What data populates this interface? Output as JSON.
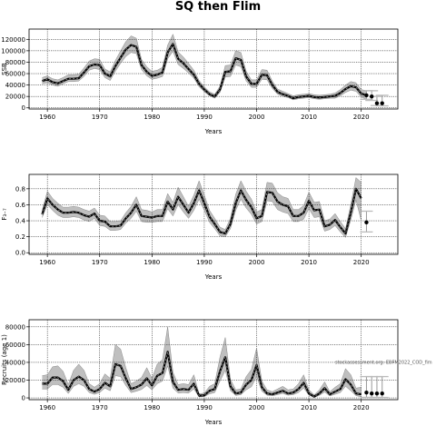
{
  "title": "SQ then Flim",
  "watermark": "stockassessment.org: EBFM2022_COD_fim",
  "chart_data": [
    {
      "type": "line",
      "xlabel": "Years",
      "ylabel": "SSB",
      "xlim": [
        1956.5,
        2027
      ],
      "ylim": [
        -2000,
        138000
      ],
      "xticks": [
        1960,
        1970,
        1980,
        1990,
        2000,
        2010,
        2020
      ],
      "yticks": [
        0,
        20000,
        40000,
        60000,
        80000,
        100000,
        120000
      ],
      "grid": true,
      "series": [
        {
          "x": [
            1959,
            1960,
            1961,
            1962,
            1963,
            1964,
            1965,
            1966,
            1967,
            1968,
            1969,
            1970,
            1971,
            1972,
            1973,
            1974,
            1975,
            1976,
            1977,
            1978,
            1979,
            1980,
            1981,
            1982,
            1983,
            1984,
            1985,
            1986,
            1987,
            1988,
            1989,
            1990,
            1991,
            1992,
            1993,
            1994,
            1995,
            1996,
            1997,
            1998,
            1999,
            2000,
            2001,
            2002,
            2003,
            2004,
            2005,
            2006,
            2007,
            2008,
            2009,
            2010,
            2011,
            2012,
            2013,
            2014,
            2015,
            2016,
            2017,
            2018,
            2019,
            2020,
            2021
          ],
          "y": [
            47000,
            50000,
            45000,
            43000,
            47000,
            51000,
            51000,
            52000,
            62000,
            73000,
            76000,
            75000,
            60000,
            55000,
            73000,
            88000,
            102000,
            110000,
            107000,
            75000,
            63000,
            56000,
            58000,
            62000,
            97000,
            112000,
            86000,
            78000,
            68000,
            58000,
            42000,
            32000,
            24000,
            20000,
            32000,
            63000,
            64000,
            87000,
            84000,
            55000,
            42000,
            42000,
            58000,
            57000,
            40000,
            28000,
            24000,
            21000,
            17000,
            19000,
            20000,
            21000,
            19000,
            18000,
            19000,
            20000,
            21000,
            26000,
            33000,
            38000,
            36000,
            25000,
            22000
          ],
          "lower": [
            42000,
            44000,
            40000,
            38000,
            42000,
            46000,
            46000,
            47000,
            55000,
            66000,
            69000,
            67000,
            53000,
            48000,
            64000,
            78000,
            90000,
            97000,
            95000,
            67000,
            56000,
            50000,
            52000,
            55000,
            86000,
            99000,
            76000,
            69000,
            61000,
            52000,
            37000,
            28000,
            21000,
            17000,
            27000,
            54000,
            55000,
            75000,
            72000,
            47000,
            36000,
            36000,
            50000,
            49000,
            34000,
            24000,
            20000,
            18000,
            14000,
            16000,
            17000,
            18000,
            16000,
            15000,
            16000,
            17000,
            17000,
            21000,
            27000,
            31000,
            29000,
            19000,
            15000
          ],
          "upper": [
            53000,
            56000,
            51000,
            49000,
            53000,
            58000,
            58000,
            59000,
            70000,
            82000,
            86000,
            85000,
            68000,
            63000,
            83000,
            100000,
            116000,
            126000,
            122000,
            85000,
            72000,
            64000,
            66000,
            71000,
            110000,
            129000,
            98000,
            89000,
            78000,
            66000,
            48000,
            37000,
            28000,
            24000,
            38000,
            74000,
            75000,
            100000,
            97000,
            64000,
            49000,
            49000,
            67000,
            66000,
            47000,
            33000,
            29000,
            25000,
            21000,
            23000,
            24000,
            25000,
            23000,
            22000,
            23000,
            24000,
            26000,
            32000,
            40000,
            46000,
            44000,
            32000,
            30000
          ]
        }
      ],
      "forecast": {
        "x": [
          2021,
          2022,
          2023,
          2024
        ],
        "y": [
          22000,
          20000,
          8000,
          8000
        ],
        "lower": [
          15000,
          13000,
          4000,
          3500
        ],
        "upper": [
          30000,
          30000,
          20000,
          22000
        ]
      }
    },
    {
      "type": "line",
      "xlabel": "Years",
      "ylabel": "F₃₋₇",
      "xlim": [
        1956.5,
        2027
      ],
      "ylim": [
        -0.02,
        0.98
      ],
      "xticks": [
        1960,
        1970,
        1980,
        1990,
        2000,
        2010,
        2020
      ],
      "yticks": [
        0.0,
        0.2,
        0.4,
        0.6,
        0.8
      ],
      "grid": true,
      "series": [
        {
          "x": [
            1959,
            1960,
            1961,
            1962,
            1963,
            1964,
            1965,
            1966,
            1967,
            1968,
            1969,
            1970,
            1971,
            1972,
            1973,
            1974,
            1975,
            1976,
            1977,
            1978,
            1979,
            1980,
            1981,
            1982,
            1983,
            1984,
            1985,
            1986,
            1987,
            1988,
            1989,
            1990,
            1991,
            1992,
            1993,
            1994,
            1995,
            1996,
            1997,
            1998,
            1999,
            2000,
            2001,
            2002,
            2003,
            2004,
            2005,
            2006,
            2007,
            2008,
            2009,
            2010,
            2011,
            2012,
            2013,
            2014,
            2015,
            2016,
            2017,
            2018,
            2019,
            2020
          ],
          "y": [
            0.48,
            0.68,
            0.6,
            0.54,
            0.5,
            0.5,
            0.51,
            0.5,
            0.47,
            0.45,
            0.49,
            0.4,
            0.39,
            0.33,
            0.33,
            0.34,
            0.43,
            0.5,
            0.6,
            0.46,
            0.45,
            0.44,
            0.46,
            0.46,
            0.64,
            0.54,
            0.7,
            0.6,
            0.5,
            0.62,
            0.78,
            0.62,
            0.45,
            0.36,
            0.26,
            0.24,
            0.36,
            0.62,
            0.78,
            0.66,
            0.57,
            0.43,
            0.46,
            0.76,
            0.75,
            0.64,
            0.6,
            0.58,
            0.46,
            0.46,
            0.5,
            0.65,
            0.53,
            0.54,
            0.33,
            0.35,
            0.41,
            0.32,
            0.24,
            0.5,
            0.8,
            0.68
          ],
          "lower": [
            0.44,
            0.6,
            0.53,
            0.47,
            0.44,
            0.44,
            0.45,
            0.44,
            0.41,
            0.39,
            0.43,
            0.34,
            0.33,
            0.28,
            0.28,
            0.29,
            0.37,
            0.43,
            0.52,
            0.39,
            0.38,
            0.38,
            0.39,
            0.39,
            0.55,
            0.46,
            0.6,
            0.51,
            0.43,
            0.53,
            0.67,
            0.53,
            0.38,
            0.3,
            0.21,
            0.2,
            0.3,
            0.53,
            0.67,
            0.56,
            0.48,
            0.36,
            0.39,
            0.65,
            0.64,
            0.54,
            0.51,
            0.49,
            0.39,
            0.39,
            0.42,
            0.55,
            0.44,
            0.45,
            0.27,
            0.29,
            0.34,
            0.26,
            0.19,
            0.41,
            0.66,
            0.4
          ],
          "upper": [
            0.53,
            0.77,
            0.68,
            0.62,
            0.57,
            0.57,
            0.58,
            0.57,
            0.54,
            0.52,
            0.56,
            0.47,
            0.46,
            0.39,
            0.39,
            0.4,
            0.5,
            0.58,
            0.7,
            0.54,
            0.53,
            0.51,
            0.54,
            0.54,
            0.74,
            0.63,
            0.82,
            0.7,
            0.58,
            0.72,
            0.9,
            0.72,
            0.53,
            0.43,
            0.32,
            0.29,
            0.43,
            0.73,
            0.9,
            0.77,
            0.67,
            0.51,
            0.54,
            0.88,
            0.87,
            0.75,
            0.7,
            0.68,
            0.54,
            0.54,
            0.59,
            0.76,
            0.63,
            0.64,
            0.4,
            0.42,
            0.49,
            0.39,
            0.3,
            0.6,
            0.94,
            0.88
          ]
        }
      ],
      "forecast": {
        "x": [
          2021
        ],
        "y": [
          0.38
        ],
        "lower": [
          0.26
        ],
        "upper": [
          0.52
        ]
      }
    },
    {
      "type": "line",
      "xlabel": "Years",
      "ylabel": "Recruits (age 1)",
      "xlim": [
        1956.5,
        2027
      ],
      "ylim": [
        -2000,
        88000
      ],
      "xticks": [
        1960,
        1970,
        1980,
        1990,
        2000,
        2010,
        2020
      ],
      "yticks": [
        0,
        20000,
        40000,
        60000,
        80000
      ],
      "grid": true,
      "series": [
        {
          "x": [
            1959,
            1960,
            1961,
            1962,
            1963,
            1964,
            1965,
            1966,
            1967,
            1968,
            1969,
            1970,
            1971,
            1972,
            1973,
            1974,
            1975,
            1976,
            1977,
            1978,
            1979,
            1980,
            1981,
            1982,
            1983,
            1984,
            1985,
            1986,
            1987,
            1988,
            1989,
            1990,
            1991,
            1992,
            1993,
            1994,
            1995,
            1996,
            1997,
            1998,
            1999,
            2000,
            2001,
            2002,
            2003,
            2004,
            2005,
            2006,
            2007,
            2008,
            2009,
            2010,
            2011,
            2012,
            2013,
            2014,
            2015,
            2016,
            2017,
            2018,
            2019,
            2020
          ],
          "y": [
            16000,
            16000,
            23000,
            23000,
            19000,
            9000,
            20000,
            24000,
            20000,
            10000,
            7000,
            10000,
            17000,
            13000,
            38000,
            36000,
            22000,
            10000,
            12000,
            15000,
            22000,
            14000,
            25000,
            28000,
            52000,
            18000,
            9000,
            10000,
            9000,
            16000,
            2500,
            3000,
            8000,
            10000,
            30000,
            46000,
            13000,
            5000,
            6000,
            15000,
            20000,
            37000,
            12000,
            5000,
            4000,
            6000,
            8000,
            5000,
            6000,
            10000,
            17000,
            5000,
            1500,
            5000,
            11000,
            4000,
            7000,
            10000,
            21000,
            15000,
            5000,
            4000
          ],
          "lower": [
            10000,
            10000,
            15000,
            15000,
            12000,
            5000,
            13000,
            16000,
            13000,
            6000,
            4000,
            6000,
            11000,
            8000,
            25000,
            24000,
            14000,
            6000,
            7500,
            9500,
            14000,
            9000,
            16000,
            19000,
            36000,
            11000,
            5500,
            6000,
            5500,
            10000,
            1200,
            1500,
            4500,
            6000,
            19000,
            31000,
            8000,
            2800,
            3500,
            9000,
            12500,
            24000,
            7500,
            3000,
            2400,
            3600,
            5000,
            3000,
            3600,
            6000,
            11000,
            3000,
            600,
            2800,
            6500,
            2200,
            4000,
            6000,
            13000,
            8000,
            2500,
            1200
          ],
          "upper": [
            25000,
            26000,
            35000,
            36000,
            30000,
            15000,
            31000,
            38000,
            31000,
            16000,
            12000,
            16000,
            27000,
            22000,
            60000,
            55000,
            34000,
            16000,
            19000,
            23000,
            34000,
            22000,
            38000,
            43000,
            80000,
            29000,
            15000,
            16000,
            15000,
            26000,
            4500,
            5500,
            13000,
            16000,
            46000,
            68000,
            21000,
            9000,
            10000,
            24000,
            32000,
            56000,
            19000,
            9000,
            7000,
            10000,
            13000,
            9000,
            10000,
            16000,
            26000,
            9000,
            3500,
            9000,
            18000,
            7000,
            12000,
            16000,
            33000,
            26000,
            11000,
            12000
          ]
        }
      ],
      "forecast": {
        "x": [
          2021,
          2022,
          2023,
          2024
        ],
        "y": [
          6000,
          5000,
          5000,
          5000
        ],
        "lower": [
          600,
          500,
          500,
          500
        ],
        "upper": [
          24000,
          24000,
          24000,
          24000
        ]
      }
    }
  ]
}
